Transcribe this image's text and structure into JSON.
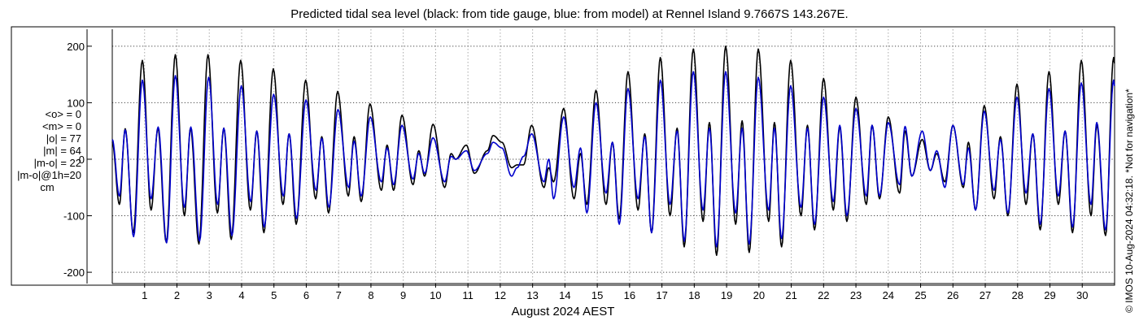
{
  "chart_data": {
    "type": "line",
    "title": "Predicted tidal sea level (black: from tide gauge, blue: from model) at Rennel Island 9.7667S 143.267E.",
    "xlabel": "August 2024 AEST",
    "ylabel": "",
    "ylim": [
      -220,
      230
    ],
    "xlim": [
      0.0,
      31.0
    ],
    "yticks": [
      200,
      100,
      0,
      -100,
      -200
    ],
    "xticks": [
      1,
      2,
      3,
      4,
      5,
      6,
      7,
      8,
      9,
      10,
      11,
      12,
      13,
      14,
      15,
      16,
      17,
      18,
      19,
      20,
      21,
      22,
      23,
      24,
      25,
      26,
      27,
      28,
      29,
      30
    ],
    "grid": true,
    "stats": [
      "<o> = 0",
      "<m> = 0",
      "|o| = 77",
      "|m| = 64",
      "|m-o| = 22",
      "|m-o|@1h=20",
      "cm"
    ],
    "credit": "© IMOS 10-Aug-2024 04:32:18. *Not for navigation*",
    "colors": {
      "observed": "#000000",
      "model": "#0000cc",
      "grid": "#a8a8a8"
    },
    "series": [
      {
        "name": "black: from tide gauge",
        "extrema": [
          [
            0.0,
            30
          ],
          [
            0.22,
            -80
          ],
          [
            0.4,
            54
          ],
          [
            0.65,
            -130
          ],
          [
            0.93,
            175
          ],
          [
            1.2,
            -90
          ],
          [
            1.41,
            55
          ],
          [
            1.67,
            -147
          ],
          [
            1.95,
            185
          ],
          [
            2.23,
            -100
          ],
          [
            2.42,
            55
          ],
          [
            2.68,
            -150
          ],
          [
            2.96,
            185
          ],
          [
            3.25,
            -95
          ],
          [
            3.45,
            55
          ],
          [
            3.68,
            -142
          ],
          [
            3.97,
            175
          ],
          [
            4.27,
            -90
          ],
          [
            4.47,
            50
          ],
          [
            4.69,
            -130
          ],
          [
            4.98,
            160
          ],
          [
            5.28,
            -80
          ],
          [
            5.47,
            45
          ],
          [
            5.69,
            -115
          ],
          [
            5.98,
            140
          ],
          [
            6.29,
            -70
          ],
          [
            6.48,
            40
          ],
          [
            6.69,
            -95
          ],
          [
            6.97,
            120
          ],
          [
            7.3,
            -65
          ],
          [
            7.48,
            40
          ],
          [
            7.7,
            -75
          ],
          [
            7.97,
            98
          ],
          [
            8.32,
            -55
          ],
          [
            8.5,
            25
          ],
          [
            8.7,
            -55
          ],
          [
            8.96,
            78
          ],
          [
            9.3,
            -45
          ],
          [
            9.48,
            15
          ],
          [
            9.66,
            -30
          ],
          [
            9.92,
            62
          ],
          [
            10.28,
            -50
          ],
          [
            10.48,
            10
          ],
          [
            10.62,
            0
          ],
          [
            10.95,
            25
          ],
          [
            11.2,
            -25
          ],
          [
            11.6,
            15
          ],
          [
            11.78,
            42
          ],
          [
            12.05,
            30
          ],
          [
            12.35,
            -15
          ],
          [
            12.52,
            -10
          ],
          [
            12.72,
            -10
          ],
          [
            12.97,
            60
          ],
          [
            13.35,
            -50
          ],
          [
            13.5,
            -15
          ],
          [
            13.65,
            -40
          ],
          [
            13.96,
            90
          ],
          [
            14.28,
            -70
          ],
          [
            14.48,
            10
          ],
          [
            14.68,
            -80
          ],
          [
            14.96,
            122
          ],
          [
            15.27,
            -80
          ],
          [
            15.47,
            30
          ],
          [
            15.68,
            -105
          ],
          [
            15.95,
            155
          ],
          [
            16.26,
            -90
          ],
          [
            16.47,
            45
          ],
          [
            16.68,
            -130
          ],
          [
            16.95,
            180
          ],
          [
            17.25,
            -100
          ],
          [
            17.47,
            55
          ],
          [
            17.69,
            -155
          ],
          [
            17.97,
            195
          ],
          [
            18.27,
            -110
          ],
          [
            18.47,
            65
          ],
          [
            18.69,
            -170
          ],
          [
            18.97,
            200
          ],
          [
            19.28,
            -115
          ],
          [
            19.48,
            68
          ],
          [
            19.7,
            -165
          ],
          [
            19.98,
            195
          ],
          [
            20.3,
            -110
          ],
          [
            20.48,
            65
          ],
          [
            20.7,
            -155
          ],
          [
            20.98,
            175
          ],
          [
            21.3,
            -100
          ],
          [
            21.5,
            60
          ],
          [
            21.72,
            -125
          ],
          [
            22.0,
            143
          ],
          [
            22.3,
            -90
          ],
          [
            22.5,
            57
          ],
          [
            22.72,
            -110
          ],
          [
            23.0,
            110
          ],
          [
            23.32,
            -80
          ],
          [
            23.5,
            60
          ],
          [
            23.73,
            -70
          ],
          [
            24.0,
            75
          ],
          [
            24.35,
            -60
          ],
          [
            24.52,
            50
          ],
          [
            24.73,
            -30
          ],
          [
            25.05,
            35
          ],
          [
            25.3,
            -20
          ],
          [
            25.5,
            10
          ],
          [
            25.75,
            -40
          ],
          [
            26.0,
            60
          ],
          [
            26.32,
            -50
          ],
          [
            26.48,
            30
          ],
          [
            26.7,
            -90
          ],
          [
            26.97,
            95
          ],
          [
            27.27,
            -70
          ],
          [
            27.47,
            40
          ],
          [
            27.7,
            -100
          ],
          [
            27.98,
            133
          ],
          [
            28.26,
            -80
          ],
          [
            28.47,
            45
          ],
          [
            28.7,
            -125
          ],
          [
            28.97,
            155
          ],
          [
            29.26,
            -80
          ],
          [
            29.47,
            50
          ],
          [
            29.7,
            -130
          ],
          [
            29.97,
            175
          ],
          [
            30.27,
            -100
          ],
          [
            30.45,
            60
          ],
          [
            30.72,
            -135
          ],
          [
            30.97,
            180
          ],
          [
            31.0,
            170
          ]
        ]
      },
      {
        "name": "blue: from model",
        "extrema": [
          [
            0.0,
            35
          ],
          [
            0.22,
            -65
          ],
          [
            0.4,
            52
          ],
          [
            0.66,
            -137
          ],
          [
            0.93,
            140
          ],
          [
            1.2,
            -70
          ],
          [
            1.42,
            57
          ],
          [
            1.68,
            -148
          ],
          [
            1.95,
            148
          ],
          [
            2.23,
            -85
          ],
          [
            2.43,
            57
          ],
          [
            2.7,
            -145
          ],
          [
            2.98,
            145
          ],
          [
            3.26,
            -80
          ],
          [
            3.45,
            55
          ],
          [
            3.7,
            -135
          ],
          [
            3.99,
            130
          ],
          [
            4.28,
            -75
          ],
          [
            4.47,
            50
          ],
          [
            4.7,
            -120
          ],
          [
            4.99,
            115
          ],
          [
            5.29,
            -65
          ],
          [
            5.47,
            45
          ],
          [
            5.7,
            -105
          ],
          [
            5.99,
            105
          ],
          [
            6.3,
            -55
          ],
          [
            6.48,
            37
          ],
          [
            6.7,
            -85
          ],
          [
            6.98,
            88
          ],
          [
            7.31,
            -50
          ],
          [
            7.48,
            32
          ],
          [
            7.7,
            -65
          ],
          [
            7.98,
            75
          ],
          [
            8.32,
            -40
          ],
          [
            8.5,
            20
          ],
          [
            8.7,
            -45
          ],
          [
            8.96,
            60
          ],
          [
            9.3,
            -35
          ],
          [
            9.48,
            10
          ],
          [
            9.66,
            -25
          ],
          [
            9.92,
            38
          ],
          [
            10.28,
            -40
          ],
          [
            10.48,
            5
          ],
          [
            10.62,
            0
          ],
          [
            10.95,
            15
          ],
          [
            11.2,
            -20
          ],
          [
            11.6,
            10
          ],
          [
            11.78,
            30
          ],
          [
            12.05,
            20
          ],
          [
            12.35,
            -30
          ],
          [
            12.52,
            -15
          ],
          [
            12.72,
            5
          ],
          [
            12.97,
            45
          ],
          [
            13.35,
            -40
          ],
          [
            13.5,
            0
          ],
          [
            13.65,
            -70
          ],
          [
            13.96,
            75
          ],
          [
            14.28,
            -50
          ],
          [
            14.48,
            20
          ],
          [
            14.68,
            -95
          ],
          [
            14.96,
            100
          ],
          [
            15.27,
            -60
          ],
          [
            15.47,
            30
          ],
          [
            15.68,
            -115
          ],
          [
            15.95,
            125
          ],
          [
            16.26,
            -70
          ],
          [
            16.47,
            40
          ],
          [
            16.68,
            -130
          ],
          [
            16.95,
            140
          ],
          [
            17.25,
            -80
          ],
          [
            17.47,
            50
          ],
          [
            17.69,
            -145
          ],
          [
            17.97,
            155
          ],
          [
            18.27,
            -90
          ],
          [
            18.47,
            55
          ],
          [
            18.69,
            -155
          ],
          [
            18.97,
            155
          ],
          [
            19.28,
            -95
          ],
          [
            19.48,
            55
          ],
          [
            19.7,
            -150
          ],
          [
            19.98,
            145
          ],
          [
            20.3,
            -90
          ],
          [
            20.48,
            55
          ],
          [
            20.7,
            -140
          ],
          [
            20.98,
            130
          ],
          [
            21.3,
            -85
          ],
          [
            21.5,
            55
          ],
          [
            21.72,
            -115
          ],
          [
            22.0,
            110
          ],
          [
            22.3,
            -75
          ],
          [
            22.5,
            60
          ],
          [
            22.72,
            -100
          ],
          [
            23.0,
            90
          ],
          [
            23.32,
            -65
          ],
          [
            23.5,
            60
          ],
          [
            23.73,
            -65
          ],
          [
            24.0,
            65
          ],
          [
            24.35,
            -45
          ],
          [
            24.52,
            58
          ],
          [
            24.73,
            -30
          ],
          [
            25.05,
            50
          ],
          [
            25.3,
            -20
          ],
          [
            25.5,
            15
          ],
          [
            25.75,
            -50
          ],
          [
            26.0,
            60
          ],
          [
            26.32,
            -45
          ],
          [
            26.48,
            20
          ],
          [
            26.7,
            -90
          ],
          [
            26.97,
            85
          ],
          [
            27.27,
            -55
          ],
          [
            27.47,
            35
          ],
          [
            27.7,
            -95
          ],
          [
            27.98,
            110
          ],
          [
            28.26,
            -60
          ],
          [
            28.47,
            45
          ],
          [
            28.7,
            -115
          ],
          [
            28.97,
            125
          ],
          [
            29.26,
            -65
          ],
          [
            29.47,
            50
          ],
          [
            29.7,
            -120
          ],
          [
            29.97,
            135
          ],
          [
            30.27,
            -80
          ],
          [
            30.45,
            65
          ],
          [
            30.72,
            -125
          ],
          [
            30.97,
            140
          ],
          [
            31.0,
            130
          ]
        ]
      }
    ]
  }
}
